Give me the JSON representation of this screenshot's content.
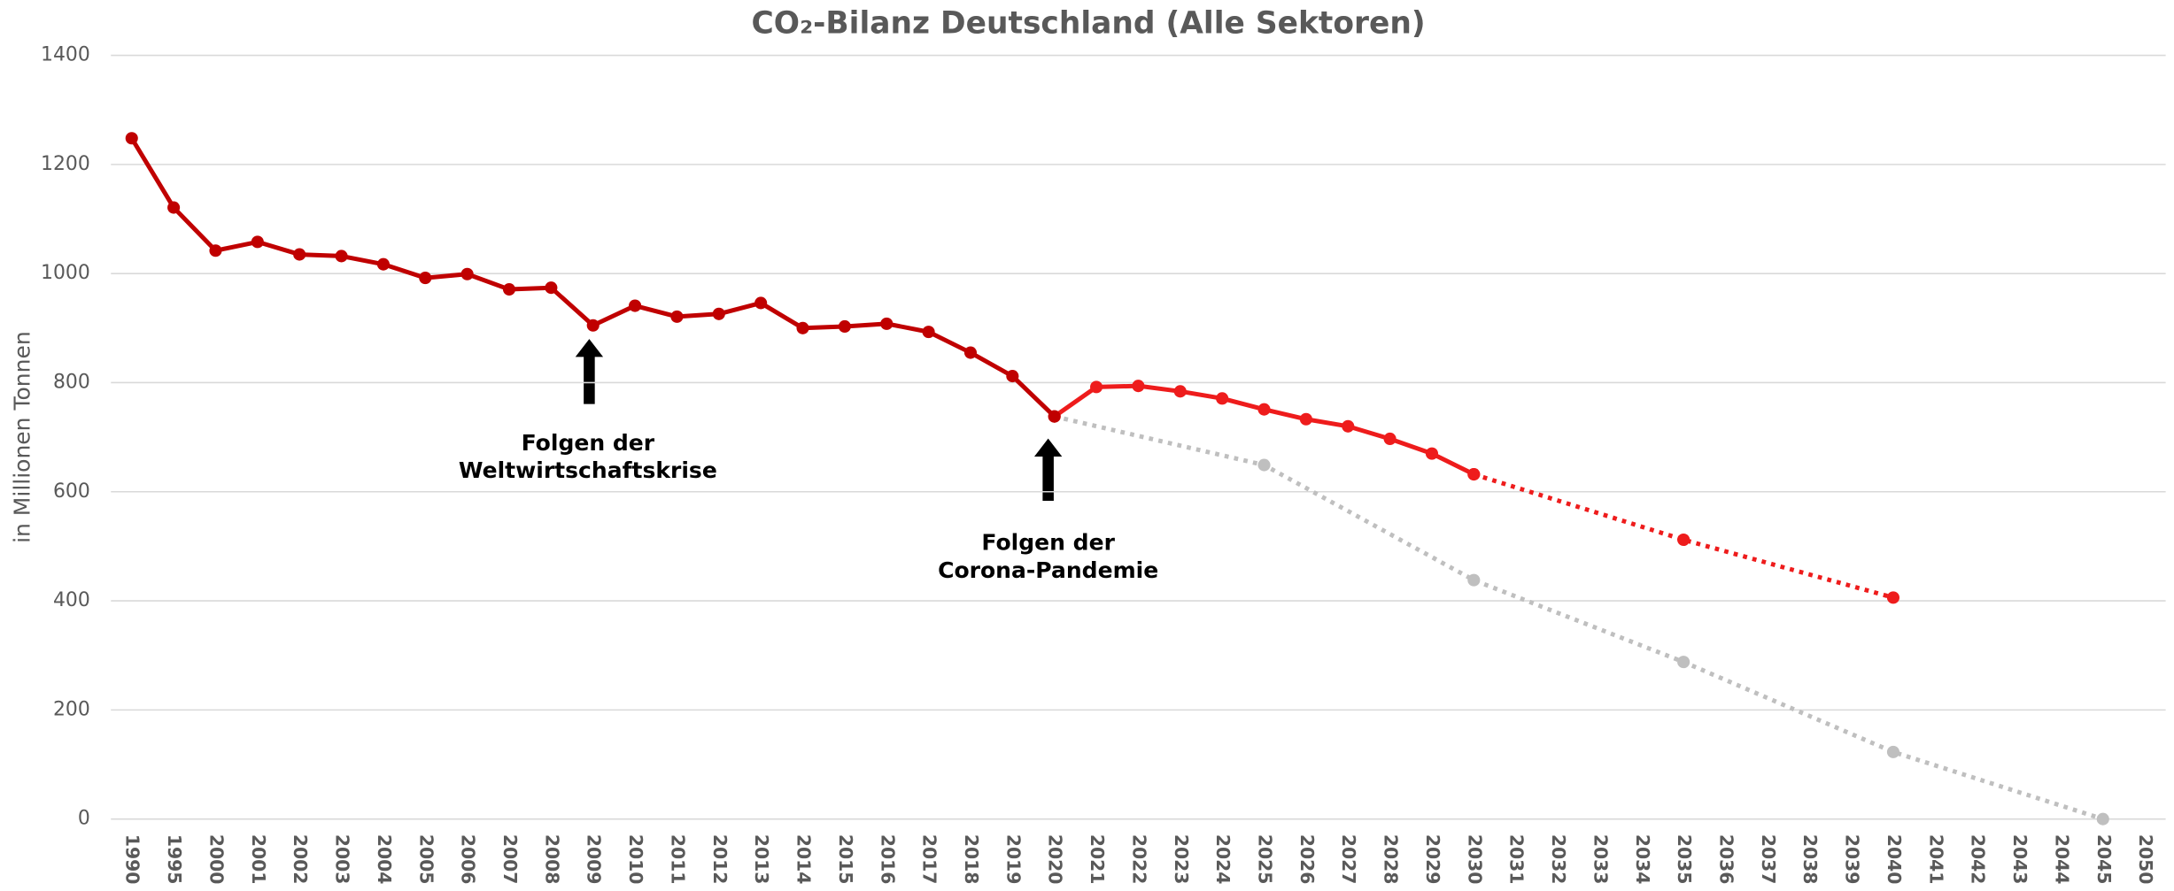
{
  "chart_data": {
    "type": "line",
    "title": "CO₂-Bilanz Deutschland (Alle Sektoren)",
    "y_label": "in Millionen Tonnen",
    "categories": [
      "1990",
      "1995",
      "2000",
      "2001",
      "2002",
      "2003",
      "2004",
      "2005",
      "2006",
      "2007",
      "2008",
      "2009",
      "2010",
      "2011",
      "2012",
      "2013",
      "2014",
      "2015",
      "2016",
      "2017",
      "2018",
      "2019",
      "2020",
      "2021",
      "2022",
      "2023",
      "2024",
      "2025",
      "2026",
      "2027",
      "2028",
      "2029",
      "2030",
      "2031",
      "2032",
      "2033",
      "2034",
      "2035",
      "2036",
      "2037",
      "2038",
      "2039",
      "2040",
      "2041",
      "2042",
      "2043",
      "2044",
      "2045",
      "2050"
    ],
    "ylim": [
      0,
      1400
    ],
    "yticks": [
      0,
      200,
      400,
      600,
      800,
      1000,
      1200,
      1400
    ],
    "grid": true,
    "series": [
      {
        "color": "#bfbfbf",
        "dashed": true,
        "x": [
          "2020",
          "2025",
          "2030",
          "2035",
          "2040",
          "2045"
        ],
        "values": [
          738,
          649,
          438,
          288,
          123,
          0
        ]
      },
      {
        "color": "#ee1c1c",
        "dashed": true,
        "x": [
          "2030",
          "2035",
          "2040"
        ],
        "values": [
          632,
          512,
          406
        ]
      },
      {
        "color": "#ee1c1c",
        "dashed": false,
        "x": [
          "2020",
          "2021",
          "2022",
          "2023",
          "2024",
          "2025",
          "2026",
          "2027",
          "2028",
          "2029",
          "2030"
        ],
        "values": [
          738,
          792,
          794,
          784,
          771,
          751,
          733,
          720,
          697,
          670,
          632
        ]
      },
      {
        "color": "#c00000",
        "dashed": false,
        "x": [
          "1990",
          "1995",
          "2000",
          "2001",
          "2002",
          "2003",
          "2004",
          "2005",
          "2006",
          "2007",
          "2008",
          "2009",
          "2010",
          "2011",
          "2012",
          "2013",
          "2014",
          "2015",
          "2016",
          "2017",
          "2018",
          "2019",
          "2020"
        ],
        "values": [
          1248,
          1121,
          1042,
          1058,
          1035,
          1032,
          1017,
          992,
          999,
          971,
          974,
          905,
          941,
          921,
          926,
          946,
          900,
          903,
          908,
          893,
          855,
          812,
          738
        ]
      }
    ],
    "annotations": [
      {
        "lines": [
          "Folgen der",
          "Weltwirtschaftskrise"
        ]
      },
      {
        "lines": [
          "Folgen der",
          "Corona-Pandemie"
        ]
      }
    ]
  }
}
